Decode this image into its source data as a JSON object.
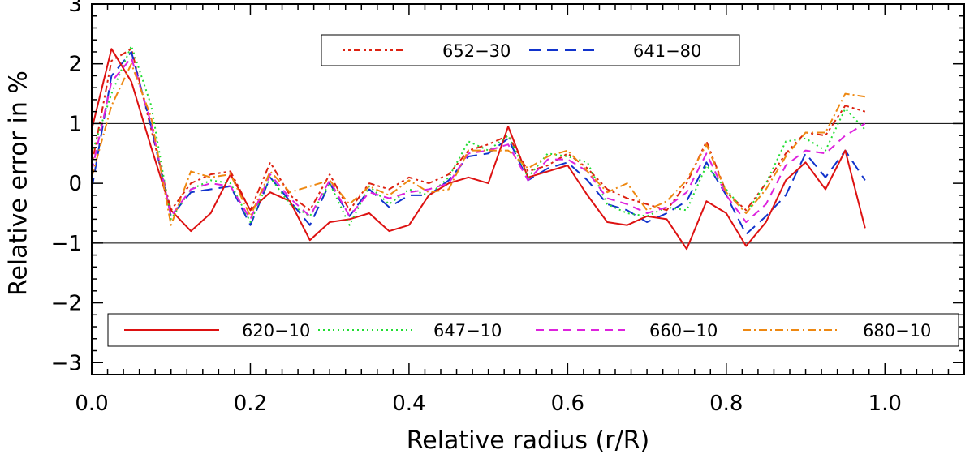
{
  "chart_data": {
    "type": "line",
    "xlabel": "Relative radius (r/R)",
    "ylabel": "Relative error in %",
    "xlim": [
      0.0,
      1.1
    ],
    "ylim": [
      -3.2,
      3.0
    ],
    "x_ticks": [
      "0.0",
      "0.2",
      "0.4",
      "0.6",
      "0.8",
      "1.0"
    ],
    "y_ticks": [
      "−3",
      "−2",
      "−1",
      "0",
      "1",
      "2",
      "3"
    ],
    "reference_lines": [
      1,
      -1
    ],
    "x": [
      0.0,
      0.025,
      0.05,
      0.075,
      0.1,
      0.125,
      0.15,
      0.175,
      0.2,
      0.225,
      0.25,
      0.275,
      0.3,
      0.325,
      0.35,
      0.375,
      0.4,
      0.425,
      0.45,
      0.475,
      0.5,
      0.525,
      0.55,
      0.575,
      0.6,
      0.625,
      0.65,
      0.675,
      0.7,
      0.725,
      0.75,
      0.775,
      0.8,
      0.825,
      0.85,
      0.875,
      0.9,
      0.925,
      0.95,
      0.975
    ],
    "series": [
      {
        "name": "652−30",
        "color": "#dd2211",
        "dash": "3 4 3 4 8 4",
        "values": [
          0.3,
          2.05,
          2.25,
          0.9,
          -0.45,
          0.0,
          0.15,
          0.2,
          -0.45,
          0.35,
          -0.2,
          -0.45,
          0.15,
          -0.45,
          0.0,
          -0.1,
          0.1,
          0.0,
          0.15,
          0.55,
          0.65,
          0.8,
          0.2,
          0.3,
          0.5,
          0.25,
          -0.1,
          -0.25,
          -0.35,
          -0.45,
          0.0,
          0.7,
          -0.15,
          -0.45,
          0.0,
          0.5,
          0.85,
          0.8,
          1.3,
          1.2
        ]
      },
      {
        "name": "641−80",
        "color": "#1133cc",
        "dash": "14 8",
        "values": [
          -0.1,
          1.8,
          2.2,
          0.95,
          -0.55,
          -0.15,
          -0.1,
          -0.05,
          -0.7,
          0.1,
          -0.3,
          -0.7,
          0.0,
          -0.55,
          -0.1,
          -0.4,
          -0.2,
          -0.2,
          0.05,
          0.45,
          0.5,
          0.75,
          0.05,
          0.25,
          0.35,
          0.05,
          -0.35,
          -0.45,
          -0.65,
          -0.5,
          -0.3,
          0.35,
          -0.2,
          -0.85,
          -0.55,
          -0.2,
          0.5,
          0.1,
          0.55,
          0.05
        ]
      },
      {
        "name": "620−10",
        "color": "#dd1111",
        "dash": "",
        "values": [
          0.9,
          2.25,
          1.7,
          0.6,
          -0.45,
          -0.8,
          -0.5,
          0.15,
          -0.45,
          -0.15,
          -0.3,
          -0.95,
          -0.65,
          -0.6,
          -0.5,
          -0.8,
          -0.7,
          -0.2,
          0.0,
          0.1,
          0.0,
          0.95,
          0.1,
          0.2,
          0.3,
          -0.2,
          -0.65,
          -0.7,
          -0.55,
          -0.6,
          -1.1,
          -0.3,
          -0.5,
          -1.05,
          -0.65,
          0.05,
          0.35,
          -0.1,
          0.55,
          -0.75
        ]
      },
      {
        "name": "647−10",
        "color": "#22dd33",
        "dash": "2 4",
        "values": [
          0.5,
          1.5,
          2.3,
          1.3,
          -0.6,
          -0.1,
          0.05,
          0.0,
          -0.65,
          0.1,
          -0.35,
          -0.55,
          0.0,
          -0.7,
          -0.05,
          -0.35,
          -0.1,
          -0.2,
          0.1,
          0.7,
          0.55,
          0.8,
          0.1,
          0.5,
          0.45,
          0.35,
          -0.35,
          -0.5,
          -0.55,
          -0.4,
          -0.45,
          0.3,
          -0.1,
          -0.5,
          0.0,
          0.7,
          0.75,
          0.55,
          1.25,
          0.9
        ]
      },
      {
        "name": "660−10",
        "color": "#dd22dd",
        "dash": "10 7",
        "values": [
          0.2,
          1.7,
          2.1,
          1.0,
          -0.55,
          -0.1,
          0.0,
          -0.05,
          -0.6,
          0.15,
          -0.25,
          -0.55,
          0.05,
          -0.55,
          -0.15,
          -0.25,
          -0.15,
          -0.1,
          0.0,
          0.5,
          0.55,
          0.65,
          0.05,
          0.4,
          0.4,
          0.2,
          -0.25,
          -0.35,
          -0.5,
          -0.4,
          -0.15,
          0.5,
          -0.2,
          -0.65,
          -0.35,
          0.3,
          0.55,
          0.5,
          0.8,
          1.0
        ]
      },
      {
        "name": "680−10",
        "color": "#ee8811",
        "dash": "10 4 2 4",
        "values": [
          0.1,
          1.3,
          2.0,
          1.1,
          -0.7,
          0.2,
          0.1,
          0.15,
          -0.55,
          0.2,
          -0.15,
          -0.05,
          0.05,
          -0.35,
          -0.05,
          -0.2,
          0.05,
          -0.15,
          -0.1,
          0.55,
          0.55,
          0.55,
          0.25,
          0.45,
          0.55,
          0.2,
          -0.15,
          0.0,
          -0.45,
          -0.3,
          0.05,
          0.65,
          -0.15,
          -0.5,
          -0.1,
          0.45,
          0.85,
          0.85,
          1.5,
          1.45
        ]
      }
    ],
    "legends": [
      {
        "entries": [
          "652−30",
          "641−80"
        ]
      },
      {
        "entries": [
          "620−10",
          "647−10",
          "660−10",
          "680−10"
        ]
      }
    ]
  }
}
